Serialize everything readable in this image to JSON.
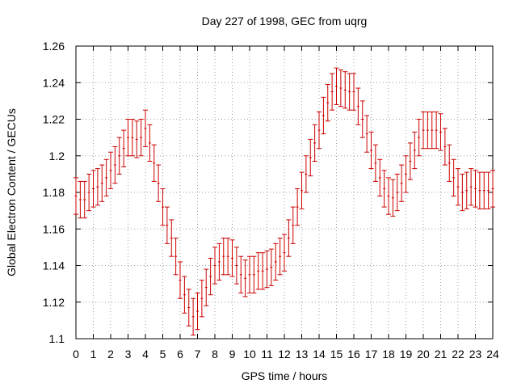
{
  "chart_data": {
    "type": "scatter",
    "title": "Day 227 of 1998, GEC from uqrg",
    "xlabel": "GPS time / hours",
    "ylabel": "Global Electron Content / GECUs",
    "xlim": [
      0,
      24
    ],
    "ylim": [
      1.1,
      1.26
    ],
    "xticks": [
      0,
      1,
      2,
      3,
      4,
      5,
      6,
      7,
      8,
      9,
      10,
      11,
      12,
      13,
      14,
      15,
      16,
      17,
      18,
      19,
      20,
      21,
      22,
      23,
      24
    ],
    "xtick_labels": [
      "0",
      "1",
      "2",
      "3",
      "4",
      "5",
      "6",
      "7",
      "8",
      "9",
      "10",
      "11",
      "12",
      "13",
      "14",
      "15",
      "16",
      "17",
      "18",
      "19",
      "20",
      "21",
      "22",
      "23",
      "24"
    ],
    "yticks": [
      1.1,
      1.12,
      1.14,
      1.16,
      1.18,
      1.2,
      1.22,
      1.24,
      1.26
    ],
    "ytick_labels": [
      "1.1",
      "1.12",
      "1.14",
      "1.16",
      "1.18",
      "1.2",
      "1.22",
      "1.24",
      "1.26"
    ],
    "grid": true,
    "error": 0.01,
    "series_color": "#cc0000",
    "x": [
      0,
      0.25,
      0.5,
      0.75,
      1,
      1.25,
      1.5,
      1.75,
      2,
      2.25,
      2.5,
      2.75,
      3,
      3.25,
      3.5,
      3.75,
      4,
      4.25,
      4.5,
      4.75,
      5,
      5.25,
      5.5,
      5.75,
      6,
      6.25,
      6.5,
      6.75,
      7,
      7.25,
      7.5,
      7.75,
      8,
      8.25,
      8.5,
      8.75,
      9,
      9.25,
      9.5,
      9.75,
      10,
      10.25,
      10.5,
      10.75,
      11,
      11.25,
      11.5,
      11.75,
      12,
      12.25,
      12.5,
      12.75,
      13,
      13.25,
      13.5,
      13.75,
      14,
      14.25,
      14.5,
      14.75,
      15,
      15.25,
      15.5,
      15.75,
      16,
      16.25,
      16.5,
      16.75,
      17,
      17.25,
      17.5,
      17.75,
      18,
      18.25,
      18.5,
      18.75,
      19,
      19.25,
      19.5,
      19.75,
      20,
      20.25,
      20.5,
      20.75,
      21,
      21.25,
      21.5,
      21.75,
      22,
      22.25,
      22.5,
      22.75,
      23,
      23.25,
      23.5,
      23.75,
      24
    ],
    "y": [
      1.178,
      1.176,
      1.176,
      1.18,
      1.182,
      1.183,
      1.185,
      1.188,
      1.192,
      1.195,
      1.2,
      1.204,
      1.21,
      1.21,
      1.209,
      1.21,
      1.215,
      1.207,
      1.196,
      1.185,
      1.172,
      1.162,
      1.155,
      1.145,
      1.132,
      1.124,
      1.117,
      1.112,
      1.115,
      1.122,
      1.128,
      1.134,
      1.14,
      1.142,
      1.145,
      1.145,
      1.144,
      1.14,
      1.135,
      1.133,
      1.135,
      1.135,
      1.137,
      1.137,
      1.138,
      1.139,
      1.142,
      1.145,
      1.147,
      1.155,
      1.162,
      1.172,
      1.181,
      1.19,
      1.199,
      1.207,
      1.214,
      1.222,
      1.229,
      1.235,
      1.238,
      1.237,
      1.236,
      1.235,
      1.235,
      1.227,
      1.22,
      1.212,
      1.203,
      1.196,
      1.188,
      1.182,
      1.178,
      1.177,
      1.18,
      1.185,
      1.19,
      1.197,
      1.203,
      1.21,
      1.214,
      1.214,
      1.214,
      1.214,
      1.213,
      1.205,
      1.196,
      1.188,
      1.183,
      1.18,
      1.181,
      1.183,
      1.182,
      1.181,
      1.181,
      1.181,
      1.182
    ]
  }
}
